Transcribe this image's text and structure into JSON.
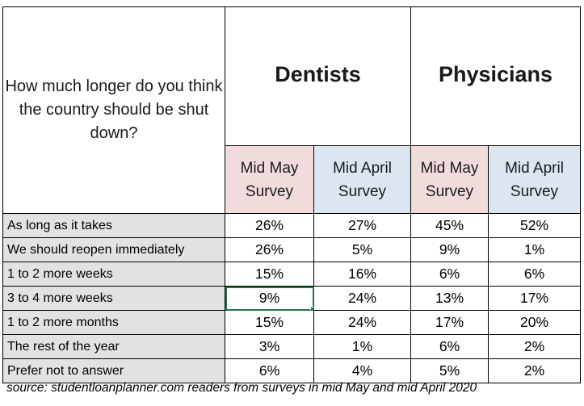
{
  "table": {
    "question": "How much longer do you think the country should be shut down?",
    "groups": [
      "Dentists",
      "Physicians"
    ],
    "subheaders": [
      "Mid May Survey",
      "Mid April Survey",
      "Mid May Survey",
      "Mid April Survey"
    ],
    "subheader_colors": [
      "#f2dcdb",
      "#dce6f1",
      "#f2dcdb",
      "#dce6f1"
    ],
    "rows": [
      {
        "label": "As long as it takes",
        "values": [
          "26%",
          "27%",
          "45%",
          "52%"
        ]
      },
      {
        "label": "We should reopen immediately",
        "values": [
          "26%",
          "5%",
          "9%",
          "1%"
        ]
      },
      {
        "label": "1 to 2 more weeks",
        "values": [
          "15%",
          "16%",
          "6%",
          "6%"
        ]
      },
      {
        "label": "3 to 4 more weeks",
        "values": [
          "9%",
          "24%",
          "13%",
          "17%"
        ]
      },
      {
        "label": "1 to 2 more months",
        "values": [
          "15%",
          "24%",
          "17%",
          "20%"
        ]
      },
      {
        "label": "The rest of the year",
        "values": [
          "3%",
          "1%",
          "6%",
          "2%"
        ]
      },
      {
        "label": "Prefer not to answer",
        "values": [
          "6%",
          "4%",
          "5%",
          "2%"
        ]
      }
    ],
    "selected_cell": {
      "row": 3,
      "col": 0
    },
    "label_fill": "#e2e2e2",
    "selection_color": "#217346"
  },
  "source": "source: studentloanplanner.com readers from surveys in mid May and mid April 2020"
}
